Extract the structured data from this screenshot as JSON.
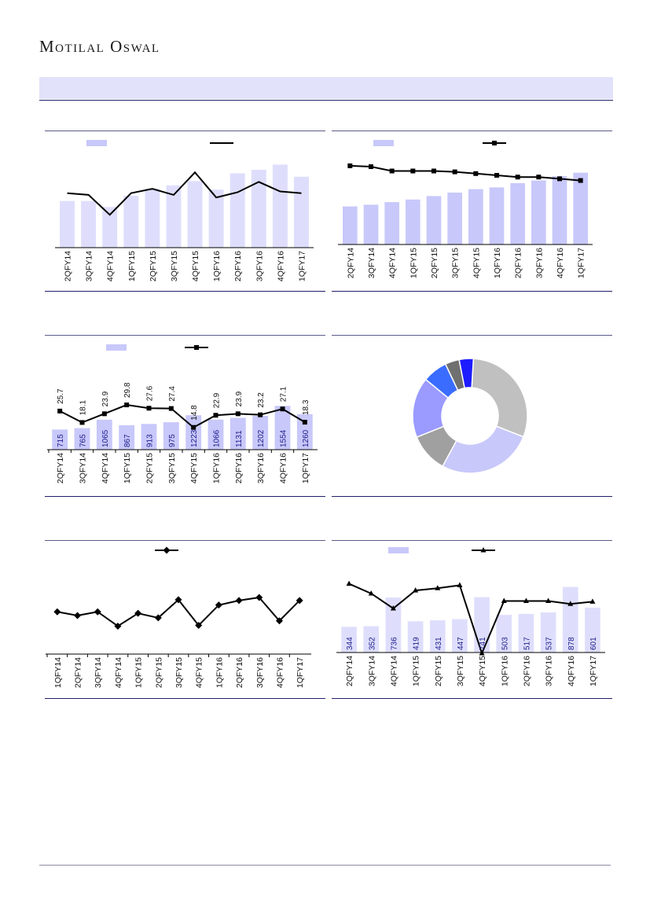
{
  "brand": {
    "logo_text": "Motilal Oswal"
  },
  "colors": {
    "bar": "#dedefc",
    "bar2": "#c8c8fa",
    "line": "#000000",
    "rule": "#1f1f6b",
    "band": "#e2e2fa"
  },
  "chart_data": [
    {
      "id": "c1",
      "type": "bar+line",
      "categories": [
        "2QFY14",
        "3QFY14",
        "4QFY14",
        "1QFY15",
        "2QFY15",
        "3QFY15",
        "4QFY15",
        "1QFY16",
        "2QFY16",
        "3QFY16",
        "4QFY16",
        "1QFY17"
      ],
      "series": [
        {
          "kind": "bar",
          "values": [
            54,
            54,
            47,
            60,
            68,
            72,
            77,
            67,
            86,
            90,
            96,
            82
          ]
        },
        {
          "kind": "line",
          "values": [
            63,
            61,
            38,
            63,
            68,
            61,
            87,
            58,
            64,
            76,
            65,
            63
          ]
        }
      ],
      "ylim": [
        0,
        100
      ]
    },
    {
      "id": "c2",
      "type": "bar+line",
      "categories": [
        "2QFY14",
        "3QFY14",
        "4QFY14",
        "1QFY15",
        "2QFY15",
        "3QFY15",
        "4QFY15",
        "1QFY16",
        "2QFY16",
        "3QFY16",
        "4QFY16",
        "1QFY17"
      ],
      "series": [
        {
          "kind": "bar",
          "values": [
            44,
            46,
            49,
            52,
            56,
            60,
            64,
            66,
            71,
            74,
            79,
            83
          ]
        },
        {
          "kind": "line",
          "values": [
            91,
            90,
            85,
            85,
            85,
            84,
            82,
            80,
            78,
            78,
            76,
            74
          ]
        }
      ],
      "ylim": [
        0,
        100
      ]
    },
    {
      "id": "c3",
      "type": "bar+line",
      "categories": [
        "2QFY14",
        "3QFY14",
        "4QFY14",
        "1QFY15",
        "2QFY15",
        "3QFY15",
        "4QFY15",
        "1QFY16",
        "2QFY16",
        "3QFY16",
        "4QFY16",
        "1QFY17"
      ],
      "series": [
        {
          "kind": "bar",
          "values": [
            715,
            765,
            1065,
            867,
            913,
            975,
            1223,
            1066,
            1131,
            1202,
            1554,
            1260
          ]
        },
        {
          "kind": "line",
          "values": [
            25.7,
            18.1,
            23.9,
            29.8,
            27.6,
            27.4,
            14.8,
            22.9,
            23.9,
            23.2,
            27.1,
            18.3
          ]
        }
      ],
      "bar_labels": [
        "715",
        "765",
        "1065",
        "867",
        "913",
        "975",
        "1223",
        "1066",
        "1131",
        "1202",
        "1554",
        "1260"
      ],
      "line_labels": [
        "25.7",
        "18.1",
        "23.9",
        "29.8",
        "27.6",
        "27.4",
        "14.8",
        "22.9",
        "23.9",
        "23.2",
        "27.1",
        "18.3"
      ],
      "ylim_bar": [
        0,
        2400
      ],
      "ylim_line": [
        0,
        45
      ]
    },
    {
      "id": "c4",
      "type": "pie",
      "donut": true,
      "values": [
        30,
        27,
        11,
        17,
        7,
        4,
        4
      ],
      "colors": [
        "#c0c0c0",
        "#c8c8fa",
        "#a0a0a0",
        "#9a9aff",
        "#3a6cff",
        "#707070",
        "#1c1cff"
      ]
    },
    {
      "id": "c5",
      "type": "line",
      "categories": [
        "1QFY14",
        "2QFY14",
        "3QFY14",
        "4QFY14",
        "1QFY15",
        "2QFY15",
        "3QFY15",
        "4QFY15",
        "1QFY16",
        "2QFY16",
        "3QFY16",
        "4QFY16",
        "1QFY17"
      ],
      "series": [
        {
          "kind": "line",
          "marker": "diamond",
          "values": [
            56,
            51,
            56,
            37,
            54,
            48,
            72,
            38,
            65,
            71,
            75,
            44,
            71
          ]
        }
      ],
      "ylim": [
        0,
        100
      ]
    },
    {
      "id": "c6",
      "type": "bar+line",
      "categories": [
        "2QFY14",
        "3QFY14",
        "4QFY14",
        "1QFY15",
        "2QFY15",
        "3QFY15",
        "4QFY15",
        "1QFY16",
        "2QFY16",
        "3QFY16",
        "4QFY16",
        "1QFY17"
      ],
      "series": [
        {
          "kind": "bar",
          "values": [
            344,
            352,
            736,
            419,
            431,
            447,
            741,
            503,
            517,
            537,
            878,
            601
          ]
        },
        {
          "kind": "line",
          "marker": "triangle",
          "values": [
            92,
            79,
            59,
            83,
            86,
            90,
            -1,
            69,
            69,
            69,
            65,
            68
          ]
        }
      ],
      "bar_labels": [
        "344",
        "352",
        "736",
        "419",
        "431",
        "447",
        "741",
        "503",
        "517",
        "537",
        "878",
        "601"
      ],
      "ylim_bar": [
        0,
        1000
      ],
      "ylim_line": [
        0,
        100
      ]
    }
  ]
}
